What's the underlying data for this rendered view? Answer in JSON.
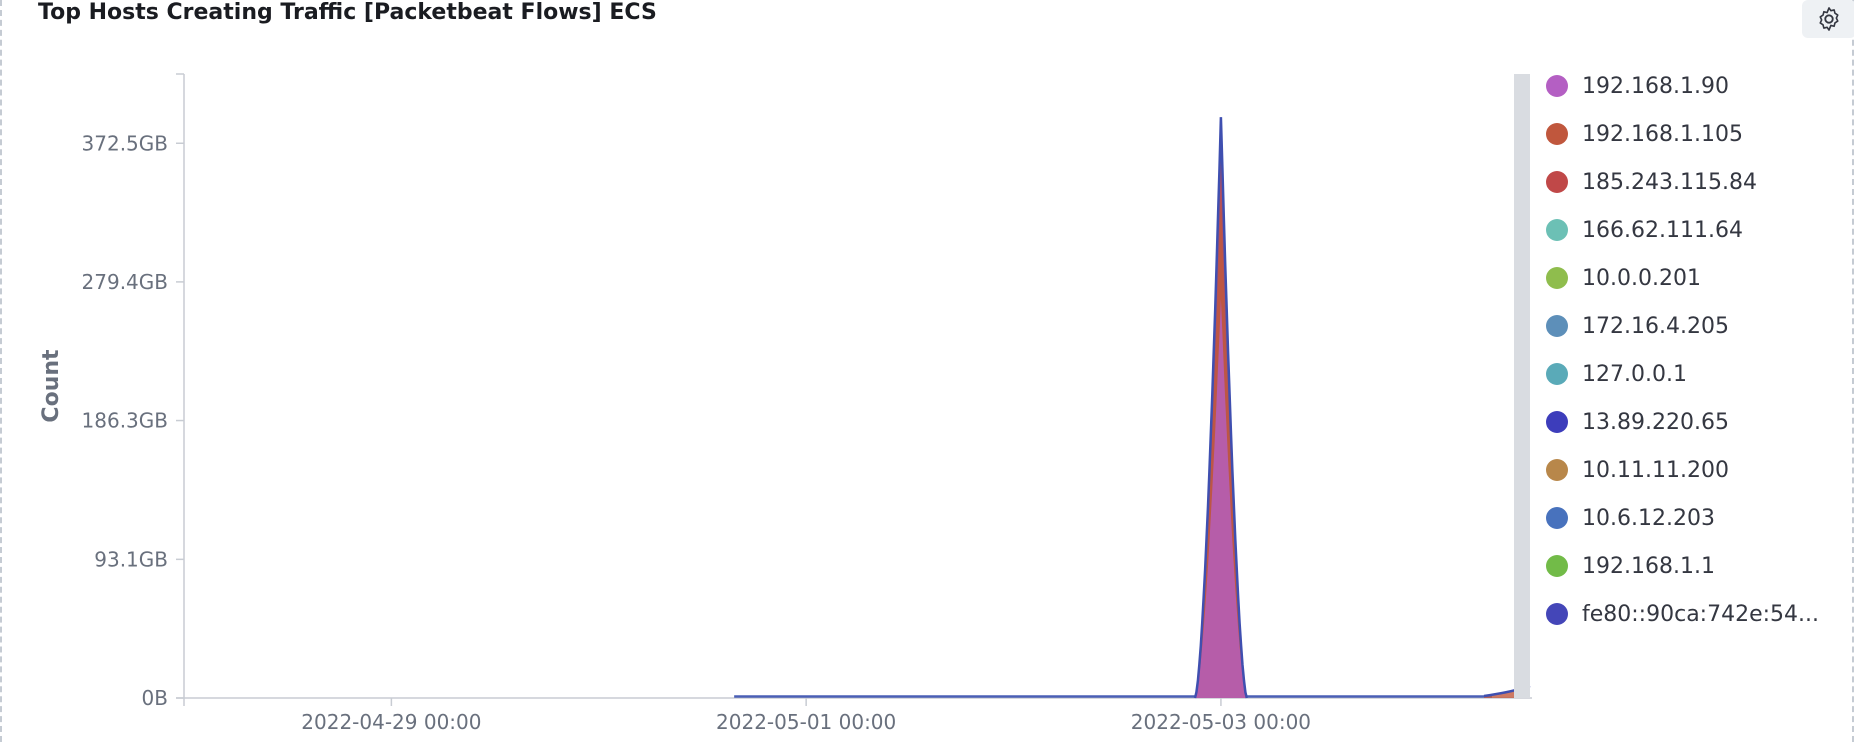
{
  "panel": {
    "title": "Top Hosts Creating Traffic [Packetbeat Flows] ECS",
    "settings_icon": "gear-icon"
  },
  "chart_data": {
    "type": "area",
    "stacked": true,
    "ylabel": "Count",
    "y_ticks": [
      "0B",
      "93.1GB",
      "186.3GB",
      "279.4GB",
      "372.5GB"
    ],
    "y_tick_values_gb": [
      0,
      93.1,
      186.3,
      279.4,
      372.5
    ],
    "ylim_gb": [
      0,
      419
    ],
    "x_ticks": [
      "2022-04-29 00:00",
      "2022-05-01 00:00",
      "2022-05-03 00:00"
    ],
    "xlim": [
      "2022-04-28",
      "2022-05-04 12:00"
    ],
    "peak": {
      "date": "2022-05-03 00:00",
      "total_gb": 390,
      "rise_start": "2022-05-02 21:00",
      "fall_end": "2022-05-03 03:00"
    },
    "series": [
      {
        "name": "192.168.1.90",
        "color": "#b45fc3",
        "peak_gb": 268
      },
      {
        "name": "192.168.1.105",
        "color": "#c0573d",
        "peak_gb": 70
      },
      {
        "name": "185.243.115.84",
        "color": "#c04848",
        "peak_gb": 40
      },
      {
        "name": "166.62.111.64",
        "color": "#6cc0b5",
        "peak_gb": 0
      },
      {
        "name": "10.0.0.201",
        "color": "#8fbd4d",
        "peak_gb": 0
      },
      {
        "name": "172.16.4.205",
        "color": "#5d8fb9",
        "peak_gb": 0
      },
      {
        "name": "127.0.0.1",
        "color": "#5aaab8",
        "peak_gb": 0
      },
      {
        "name": "13.89.220.65",
        "color": "#3d3dbb",
        "peak_gb": 0
      },
      {
        "name": "10.11.11.200",
        "color": "#b8874a",
        "peak_gb": 0
      },
      {
        "name": "10.6.12.203",
        "color": "#4872bd",
        "peak_gb": 0
      },
      {
        "name": "192.168.1.1",
        "color": "#72bb48",
        "peak_gb": 0
      },
      {
        "name": "fe80::90ca:742e:54...",
        "color": "#4446b8",
        "peak_gb": 12
      }
    ],
    "legend_position": "right"
  }
}
